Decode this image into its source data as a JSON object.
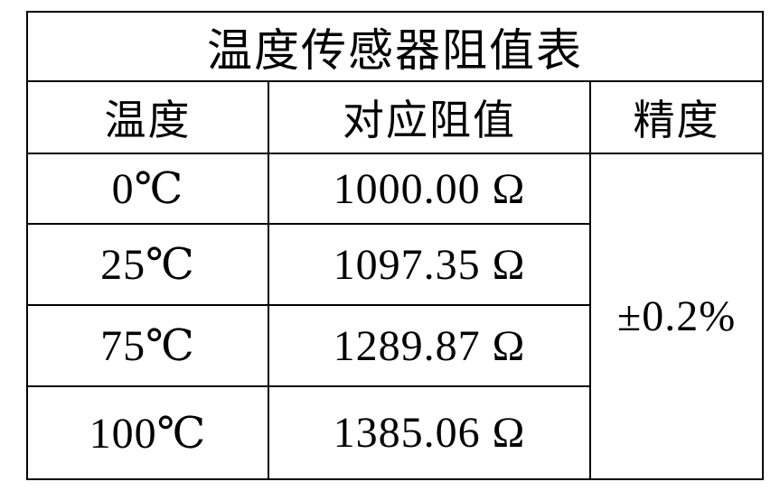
{
  "table": {
    "title": "温度传感器阻值表",
    "columns": [
      "温度",
      "对应阻值",
      "精度"
    ],
    "rows": [
      {
        "temperature": "0℃",
        "resistance": "1000.00 Ω"
      },
      {
        "temperature": "25℃",
        "resistance": "1097.35 Ω"
      },
      {
        "temperature": "75℃",
        "resistance": "1289.87 Ω"
      },
      {
        "temperature": "100℃",
        "resistance": "1385.06 Ω"
      }
    ],
    "precision": "±0.2%"
  },
  "colors": {
    "background": "#ffffff",
    "border": "#000000",
    "text": "#000000"
  },
  "chart_data": {
    "type": "table",
    "title": "温度传感器阻值表",
    "columns": [
      "温度",
      "对应阻值",
      "精度"
    ],
    "rows": [
      [
        "0℃",
        "1000.00 Ω",
        "±0.2%"
      ],
      [
        "25℃",
        "1097.35 Ω",
        "±0.2%"
      ],
      [
        "75℃",
        "1289.87 Ω",
        "±0.2%"
      ],
      [
        "100℃",
        "1385.06 Ω",
        "±0.2%"
      ]
    ],
    "temperatures_c": [
      0,
      25,
      75,
      100
    ],
    "resistances_ohm": [
      1000.0,
      1097.35,
      1289.87,
      1385.06
    ],
    "accuracy_merged": "±0.2%"
  }
}
